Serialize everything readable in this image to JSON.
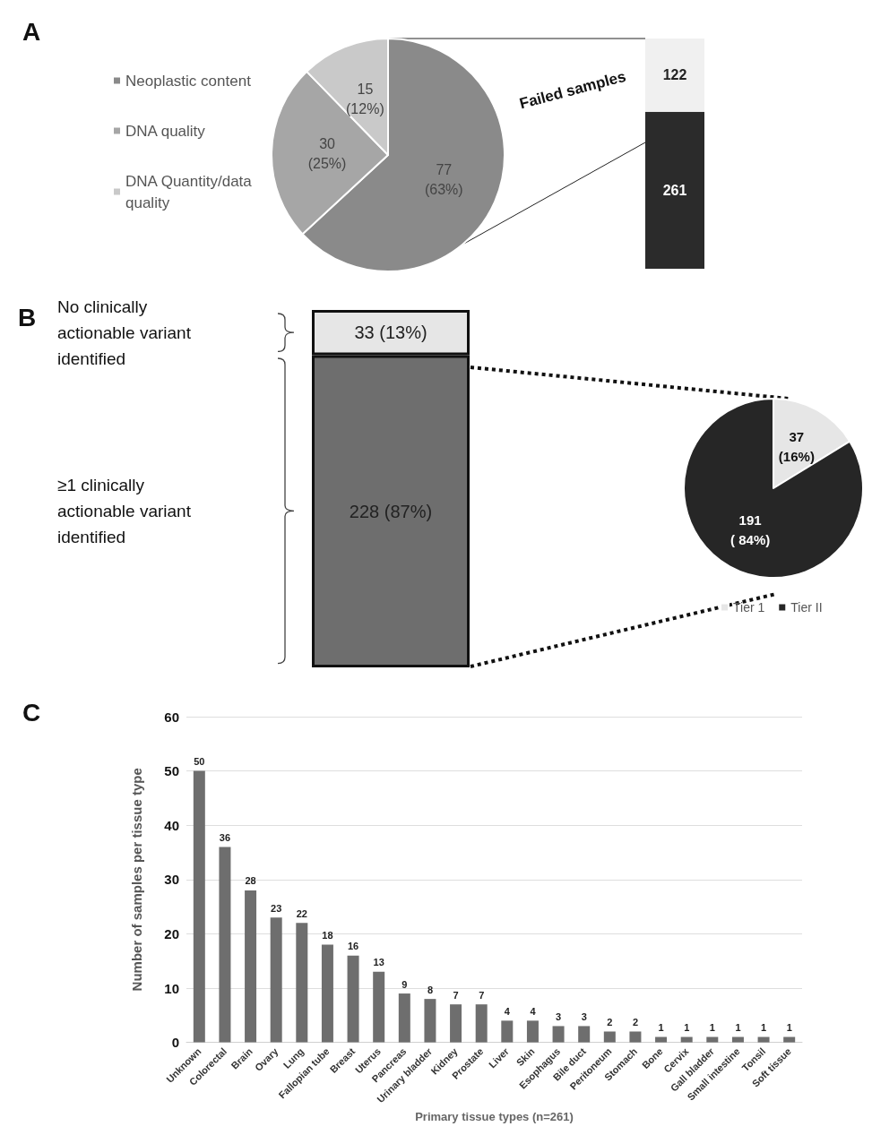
{
  "chart_data": [
    {
      "type": "pie",
      "title": "A",
      "categories": [
        "Neoplastic content",
        "DNA quality",
        "DNA Quantity/data quality"
      ],
      "values": [
        77,
        30,
        15
      ],
      "colors": [
        "#8a8a8a",
        "#a6a6a6",
        "#c9c9c9"
      ],
      "value_labels": [
        "77\n(63%)",
        "30\n(25%)",
        "15\n(12%)"
      ],
      "legend": "left"
    },
    {
      "type": "bar",
      "stacked": true,
      "categories": [
        null
      ],
      "series": [
        {
          "color": "#2b2b2b",
          "values": [
            261
          ]
        },
        {
          "color": "#f0f0f0",
          "values": [
            122
          ]
        }
      ],
      "data_labels": true,
      "annotations": [
        "Failed samples"
      ],
      "legend": false
    },
    {
      "type": "bar",
      "stacked": true,
      "categories": [
        null
      ],
      "series": [
        {
          "color": "#6e6e6e",
          "values": [
            228
          ],
          "value_labels": [
            "228 (87%)"
          ]
        },
        {
          "color": "#e6e6e6",
          "values": [
            33
          ],
          "value_labels": [
            "33 (13%)"
          ]
        }
      ],
      "annotations": [
        "B",
        "No clinically actionable variant identified",
        "≥1 clinically actionable variant identified"
      ],
      "legend": false
    },
    {
      "type": "pie",
      "categories": [
        "Tier 1",
        "Tier II"
      ],
      "values": [
        37,
        191
      ],
      "colors": [
        "#e6e6e6",
        "#262626"
      ],
      "value_labels": [
        "37\n(16%)",
        "191\n( 84%)"
      ],
      "legend": "bottom"
    },
    {
      "type": "bar",
      "title": "C",
      "categories": [
        "Unknown",
        "Colorectal",
        "Brain",
        "Ovary",
        "Lung",
        "Fallopian tube",
        "Breast",
        "Uterus",
        "Pancreas",
        "Urinary bladder",
        "Kidney",
        "Prostate",
        "Liver",
        "Skin",
        "Esophagus",
        "Bile duct",
        "Peritoneum",
        "Stomach",
        "Bone",
        "Cervix",
        "Gall bladder",
        "Small intestine",
        "Tonsil",
        "Soft tissue"
      ],
      "values": [
        50,
        36,
        28,
        23,
        22,
        18,
        16,
        13,
        9,
        8,
        7,
        7,
        4,
        4,
        3,
        3,
        2,
        2,
        1,
        1,
        1,
        1,
        1,
        1
      ],
      "color": "#6e6e6e",
      "ylim": [
        0,
        60
      ],
      "yticks": [
        0,
        10,
        20,
        30,
        40,
        50,
        60
      ],
      "ylabel": "Number of samples per tissue type",
      "xlabel": "Primary tissue types (n=261)",
      "data_labels": true,
      "grid": "y",
      "legend": false
    }
  ]
}
